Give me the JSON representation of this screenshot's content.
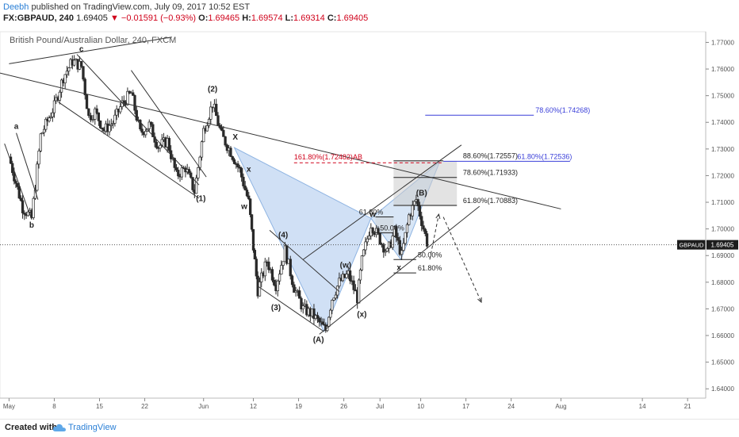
{
  "header": {
    "author": "Deebh",
    "published_text": "published on TradingView.com, July 09, 2017 10:52 EST",
    "symbol": "FX:GBPAUD, 240",
    "last": "1.69405",
    "change": "−0.01591 (−0.93%)",
    "open_label": "O:",
    "open": "1.69465",
    "high_label": "H:",
    "high": "1.69574",
    "low_label": "L:",
    "low": "1.69314",
    "close_label": "C:",
    "close": "1.69405"
  },
  "footer": {
    "created_with": "Created with",
    "brand": "TradingView"
  },
  "colors": {
    "up": "#2a2a2a",
    "down": "#2a2a2a",
    "fib_red": "#d0021b",
    "fib_blue": "#3a3fd9",
    "triangle_fill": "#a9c7ec",
    "gray_zone": "#cccccc"
  },
  "chart_data": {
    "type": "candlestick",
    "title": "British Pound/Australian Dollar, 240, FXCM",
    "xlabel": "",
    "ylabel": "",
    "ylim": [
      1.6365,
      1.774
    ],
    "y_ticks": [
      "1.64000",
      "1.65000",
      "1.66000",
      "1.67000",
      "1.68000",
      "1.69000",
      "1.70000",
      "1.71000",
      "1.72000",
      "1.73000",
      "1.74000",
      "1.75000",
      "1.76000",
      "1.77000"
    ],
    "y_tick_values": [
      1.64,
      1.65,
      1.66,
      1.67,
      1.68,
      1.69,
      1.7,
      1.71,
      1.72,
      1.73,
      1.74,
      1.75,
      1.76,
      1.77
    ],
    "x_ticks": [
      {
        "label": "May",
        "x": 0
      },
      {
        "label": "8",
        "x": 5
      },
      {
        "label": "15",
        "x": 10
      },
      {
        "label": "22",
        "x": 15
      },
      {
        "label": "Jun",
        "x": 21.5
      },
      {
        "label": "12",
        "x": 27
      },
      {
        "label": "19",
        "x": 32
      },
      {
        "label": "26",
        "x": 37
      },
      {
        "label": "Jul",
        "x": 41
      },
      {
        "label": "10",
        "x": 45.5
      },
      {
        "label": "17",
        "x": 50.5
      },
      {
        "label": "24",
        "x": 55.5
      },
      {
        "label": "Aug",
        "x": 61
      },
      {
        "label": "14",
        "x": 70
      },
      {
        "label": "21",
        "x": 75
      }
    ],
    "xlim": [
      -1,
      77
    ],
    "price_label": "GBPAUD",
    "price_value": "1.69405",
    "price": 1.69405,
    "path": [
      [
        0,
        1.727
      ],
      [
        1.5,
        1.708
      ],
      [
        2.5,
        1.704
      ],
      [
        3.5,
        1.735
      ],
      [
        5,
        1.746
      ],
      [
        6,
        1.757
      ],
      [
        7,
        1.763
      ],
      [
        8,
        1.761
      ],
      [
        8.8,
        1.742
      ],
      [
        9.5,
        1.744
      ],
      [
        10.5,
        1.737
      ],
      [
        11.5,
        1.74
      ],
      [
        12.5,
        1.747
      ],
      [
        13.5,
        1.751
      ],
      [
        14.5,
        1.736
      ],
      [
        15.5,
        1.739
      ],
      [
        16.5,
        1.731
      ],
      [
        17.5,
        1.733
      ],
      [
        18.5,
        1.72
      ],
      [
        19.5,
        1.723
      ],
      [
        20.5,
        1.714
      ],
      [
        21.5,
        1.737
      ],
      [
        22.5,
        1.747
      ],
      [
        23.5,
        1.735
      ],
      [
        24.5,
        1.729
      ],
      [
        25.5,
        1.722
      ],
      [
        26.5,
        1.71
      ],
      [
        27,
        1.693
      ],
      [
        27.5,
        1.677
      ],
      [
        28.5,
        1.688
      ],
      [
        29.5,
        1.679
      ],
      [
        30.5,
        1.692
      ],
      [
        31.5,
        1.678
      ],
      [
        32.5,
        1.67
      ],
      [
        33.5,
        1.668
      ],
      [
        34.5,
        1.664
      ],
      [
        35,
        1.662
      ],
      [
        35.7,
        1.674
      ],
      [
        36.5,
        1.68
      ],
      [
        37.5,
        1.683
      ],
      [
        38.5,
        1.674
      ],
      [
        39,
        1.688
      ],
      [
        40,
        1.702
      ],
      [
        41,
        1.696
      ],
      [
        41.8,
        1.691
      ],
      [
        42.6,
        1.699
      ],
      [
        43.4,
        1.69
      ],
      [
        44.2,
        1.705
      ],
      [
        45,
        1.711
      ],
      [
        45.6,
        1.703
      ],
      [
        46.2,
        1.695
      ]
    ],
    "labels": [
      {
        "text": "a",
        "x": 0.8,
        "y": 1.7375
      },
      {
        "text": "b",
        "x": 2.5,
        "y": 1.7005
      },
      {
        "text": "c",
        "x": 8,
        "y": 1.7665
      },
      {
        "text": "(2)",
        "x": 22.5,
        "y": 1.7515
      },
      {
        "text": "(1)",
        "x": 21.2,
        "y": 1.7105
      },
      {
        "text": "X",
        "x": 25,
        "y": 1.7335
      },
      {
        "text": "x",
        "x": 26.5,
        "y": 1.7215
      },
      {
        "text": "w",
        "x": 26,
        "y": 1.7075
      },
      {
        "text": "(4)",
        "x": 30.3,
        "y": 1.6968
      },
      {
        "text": "(3)",
        "x": 29.5,
        "y": 1.6695
      },
      {
        "text": "(A)",
        "x": 34.2,
        "y": 1.6575
      },
      {
        "text": "(w)",
        "x": 37.2,
        "y": 1.6855
      },
      {
        "text": "(x)",
        "x": 39,
        "y": 1.667
      },
      {
        "text": "w",
        "x": 40.2,
        "y": 1.7045
      },
      {
        "text": "x",
        "x": 43.1,
        "y": 1.6845
      },
      {
        "text": "(B)",
        "x": 45.6,
        "y": 1.7125
      }
    ],
    "fib_levels": [
      {
        "text": "78.60%(1.74268)",
        "y": 1.74268,
        "x1": 46,
        "x2": 58,
        "color": "#3a3fd9",
        "tx": 58,
        "anchor": "start"
      },
      {
        "text": "88.60%(1.72557)",
        "y": 1.72557,
        "x1": 42.5,
        "x2": 48,
        "color": "#222222",
        "tx": 50,
        "anchor": "start"
      },
      {
        "text": "61.80%(1.72536)",
        "y": 1.72536,
        "x1": 48,
        "x2": 62,
        "color": "#3a3fd9",
        "tx": 56,
        "anchor": "start"
      },
      {
        "text": "78.60%(1.71933)",
        "y": 1.71933,
        "x1": 42.5,
        "x2": 49.5,
        "color": "#222222",
        "tx": 50,
        "anchor": "start"
      },
      {
        "text": "61.80%(1.70883)",
        "y": 1.70883,
        "x1": 42.5,
        "x2": 49.5,
        "color": "#222222",
        "tx": 50,
        "anchor": "start"
      },
      {
        "text": "61.80%",
        "y": 1.7045,
        "x1": 40.5,
        "x2": 42.5,
        "color": "#222222",
        "tx": 38.5,
        "anchor": "start"
      },
      {
        "text": "50.00%",
        "y": 1.6985,
        "x1": 40.5,
        "x2": 42.5,
        "color": "#222222",
        "tx": 43.5,
        "anchor": "end"
      },
      {
        "text": "50.00%",
        "y": 1.6885,
        "x1": 42.5,
        "x2": 45,
        "color": "#222222",
        "tx": 45,
        "anchor": "start"
      },
      {
        "text": "61.80%",
        "y": 1.6835,
        "x1": 42.5,
        "x2": 45,
        "color": "#222222",
        "tx": 45,
        "anchor": "start"
      }
    ],
    "red_level": {
      "text": "161.80%(1.72482)",
      "ab": "AB",
      "y": 1.72482
    },
    "ruler_text": "50.00%"
  }
}
